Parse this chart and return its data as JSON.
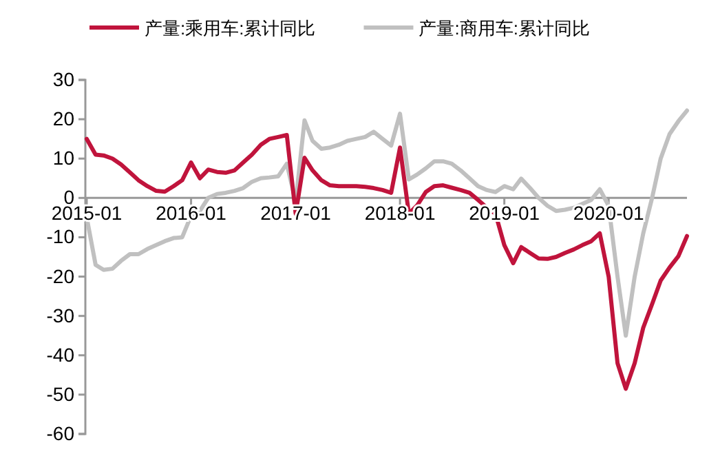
{
  "chart_data": {
    "type": "line",
    "x": [
      "2015-01",
      "2015-02",
      "2015-03",
      "2015-04",
      "2015-05",
      "2015-06",
      "2015-07",
      "2015-08",
      "2015-09",
      "2015-10",
      "2015-11",
      "2015-12",
      "2016-01",
      "2016-02",
      "2016-03",
      "2016-04",
      "2016-05",
      "2016-06",
      "2016-07",
      "2016-08",
      "2016-09",
      "2016-10",
      "2016-11",
      "2016-12",
      "2017-01",
      "2017-02",
      "2017-03",
      "2017-04",
      "2017-05",
      "2017-06",
      "2017-07",
      "2017-08",
      "2017-09",
      "2017-10",
      "2017-11",
      "2017-12",
      "2018-01",
      "2018-02",
      "2018-03",
      "2018-04",
      "2018-05",
      "2018-06",
      "2018-07",
      "2018-08",
      "2018-09",
      "2018-10",
      "2018-11",
      "2018-12",
      "2019-01",
      "2019-02",
      "2019-03",
      "2019-04",
      "2019-05",
      "2019-06",
      "2019-07",
      "2019-08",
      "2019-09",
      "2019-10",
      "2019-11",
      "2019-12",
      "2020-01",
      "2020-02",
      "2020-03",
      "2020-04",
      "2020-05",
      "2020-06",
      "2020-07",
      "2020-08",
      "2020-09",
      "2020-10"
    ],
    "series": [
      {
        "name": "产量:乘用车:累计同比",
        "color": "#c0143c",
        "values": [
          15,
          11,
          10.8,
          10,
          8.5,
          6.5,
          4.5,
          3,
          1.8,
          1.6,
          3,
          4.5,
          9,
          5,
          7.2,
          6.6,
          6.4,
          7,
          9,
          11,
          13.5,
          15,
          15.5,
          16,
          -4,
          10.2,
          7,
          4.5,
          3.2,
          3,
          3,
          3,
          2.8,
          2.5,
          2,
          1.3,
          12.8,
          -4,
          -2,
          1.5,
          3,
          3.2,
          2.6,
          2,
          1.3,
          -0.5,
          -2.5,
          -4,
          -12,
          -16.6,
          -12.5,
          -14,
          -15.4,
          -15.5,
          -15,
          -14,
          -13.1,
          -12,
          -11,
          -9,
          -20,
          -42,
          -48.5,
          -42,
          -33,
          -27,
          -21,
          -17.7,
          -14.8,
          -9.7
        ]
      },
      {
        "name": "产量:商用车:累计同比",
        "color": "#c0c0c0",
        "values": [
          -5,
          -17,
          -18.3,
          -18,
          -16,
          -14.3,
          -14.3,
          -13,
          -12,
          -11,
          -10.2,
          -10,
          -4.5,
          -3.3,
          0,
          1,
          1.3,
          1.8,
          2.5,
          4.1,
          5,
          5.2,
          5.5,
          8.7,
          -1,
          19.7,
          14.5,
          12.5,
          12.8,
          13.5,
          14.5,
          15,
          15.5,
          16.8,
          15,
          13.3,
          21.4,
          4.7,
          5.9,
          7.5,
          9.3,
          9.3,
          8.7,
          7,
          5,
          3,
          2,
          1.5,
          3,
          2.2,
          4.9,
          2.5,
          0,
          -2,
          -3.3,
          -3,
          -2.5,
          -1.5,
          -0.5,
          2.2,
          -2,
          -20,
          -35,
          -20,
          -9,
          0,
          10,
          16.2,
          19.5,
          22.2
        ]
      }
    ],
    "xlim": [
      "2015-01",
      "2020-10"
    ],
    "xticks": [
      "2015-01",
      "2016-01",
      "2017-01",
      "2018-01",
      "2019-01",
      "2020-01"
    ],
    "ylim": [
      -60,
      30
    ],
    "yticks": [
      -60,
      -50,
      -40,
      -30,
      -20,
      -10,
      0,
      10,
      20,
      30
    ],
    "legend": "top",
    "grid": false,
    "marker": "none",
    "line_style": "solid"
  }
}
